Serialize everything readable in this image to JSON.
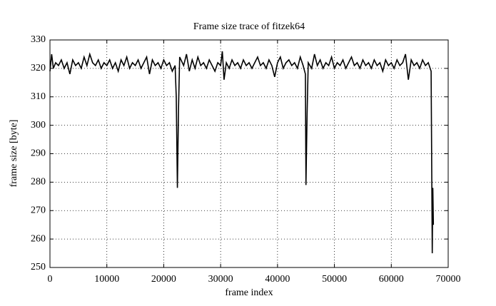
{
  "chart_data": {
    "type": "line",
    "title": "Frame size trace of fitzek64",
    "x_label": "frame index",
    "y_label": "frame size [byte]",
    "series": [
      {
        "name": "fitzek64",
        "color": "#000000",
        "x": [
          0,
          300,
          600,
          1000,
          1500,
          2000,
          2500,
          3000,
          3500,
          4000,
          4500,
          5000,
          5500,
          6000,
          6500,
          7000,
          7500,
          8000,
          8500,
          9000,
          9500,
          10000,
          10500,
          11000,
          11500,
          12000,
          12500,
          13000,
          13500,
          14000,
          14500,
          15000,
          15500,
          16000,
          16500,
          17000,
          17500,
          18000,
          18500,
          19000,
          19500,
          20000,
          20500,
          21000,
          21500,
          22000,
          22200,
          22400,
          22600,
          22800,
          23500,
          24000,
          24500,
          25000,
          25500,
          26000,
          26500,
          27000,
          27500,
          28000,
          28500,
          29000,
          29500,
          30000,
          30300,
          30600,
          31000,
          31500,
          32000,
          32500,
          33000,
          33500,
          34000,
          34500,
          35000,
          35500,
          36000,
          36500,
          37000,
          37500,
          38000,
          38500,
          39000,
          39500,
          40000,
          40500,
          41000,
          41500,
          42000,
          42500,
          43000,
          43500,
          44000,
          44500,
          44900,
          45000,
          45200,
          45400,
          46000,
          46500,
          47000,
          47500,
          48000,
          48500,
          49000,
          49500,
          50000,
          50500,
          51000,
          51500,
          52000,
          52500,
          53000,
          53500,
          54000,
          54500,
          55000,
          55500,
          56000,
          56500,
          57000,
          57500,
          58000,
          58500,
          59000,
          59500,
          60000,
          60500,
          61000,
          61500,
          62000,
          62500,
          63000,
          63500,
          64000,
          64500,
          65000,
          65500,
          66000,
          66500,
          67000,
          67200,
          67300,
          67400
        ],
        "values": [
          319,
          325,
          320,
          322,
          321,
          323,
          320,
          322,
          318,
          323,
          321,
          322,
          320,
          324,
          321,
          325,
          322,
          321,
          323,
          320,
          322,
          321,
          323,
          320,
          322,
          319,
          323,
          321,
          324,
          320,
          322,
          321,
          323,
          320,
          322,
          324,
          318,
          323,
          321,
          322,
          320,
          323,
          321,
          322,
          319,
          321,
          310,
          278,
          306,
          324,
          321,
          325,
          319,
          323,
          320,
          324,
          321,
          322,
          320,
          323,
          321,
          319,
          322,
          321,
          326,
          316,
          322,
          320,
          323,
          321,
          322,
          320,
          323,
          321,
          322,
          320,
          322,
          324,
          321,
          322,
          320,
          323,
          321,
          317,
          322,
          324,
          320,
          322,
          323,
          321,
          322,
          320,
          324,
          321,
          318,
          279,
          304,
          322,
          320,
          325,
          321,
          323,
          320,
          322,
          321,
          324,
          320,
          322,
          321,
          323,
          320,
          322,
          324,
          321,
          322,
          320,
          323,
          321,
          322,
          320,
          323,
          321,
          322,
          319,
          323,
          321,
          322,
          320,
          323,
          321,
          322,
          325,
          316,
          323,
          321,
          322,
          320,
          323,
          321,
          322,
          319,
          255,
          278,
          265
        ]
      }
    ],
    "xlim": [
      0,
      70000
    ],
    "xticks": [
      0,
      10000,
      20000,
      30000,
      40000,
      50000,
      60000,
      70000
    ],
    "ylim": [
      250,
      330
    ],
    "yticks": [
      250,
      260,
      270,
      280,
      290,
      300,
      310,
      320,
      330
    ],
    "grid": true
  }
}
